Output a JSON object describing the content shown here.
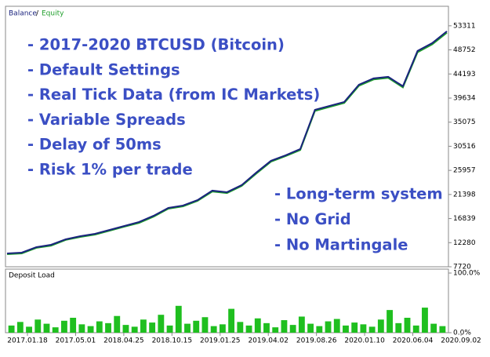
{
  "chart_data": [
    {
      "type": "line",
      "legend_separator": "/",
      "series": [
        {
          "name": "Balance",
          "color": "#1a237e",
          "values": [
            10244,
            10393,
            11433,
            11878,
            12918,
            13512,
            13957,
            14700,
            15442,
            16185,
            17373,
            18858,
            19303,
            20343,
            22125,
            21828,
            23164,
            25540,
            27768,
            28807,
            29995,
            37420,
            38163,
            38905,
            42172,
            43360,
            43657,
            41875,
            48558,
            50043,
            52270
          ]
        },
        {
          "name": "Equity",
          "color": "#1e9e2a",
          "values": [
            10100,
            10250,
            11300,
            11700,
            12800,
            13350,
            13800,
            14550,
            15300,
            16000,
            17200,
            18700,
            19150,
            20200,
            21950,
            21650,
            23000,
            25350,
            27600,
            28650,
            29800,
            37200,
            37950,
            38700,
            41950,
            43150,
            43450,
            41650,
            48300,
            49800,
            52000
          ]
        }
      ],
      "ylim": [
        7720,
        57000
      ],
      "yticks": [
        7720,
        12280,
        16839,
        21398,
        25957,
        30516,
        35075,
        39634,
        44193,
        48752,
        53311
      ],
      "annotations": [
        [
          "- 2017-2020 BTCUSD (Bitcoin)",
          "- Default Settings",
          "- Real Tick Data (from IC Markets)",
          "- Variable Spreads",
          "- Delay of 50ms",
          "- Risk 1% per trade"
        ],
        [
          "- Long-term system",
          "- No Grid",
          "- No Martingale"
        ]
      ]
    },
    {
      "type": "bar",
      "title": "Deposit Load",
      "color": "#1fbf1f",
      "values": [
        12,
        18,
        10,
        22,
        15,
        9,
        20,
        25,
        14,
        11,
        19,
        16,
        28,
        13,
        10,
        22,
        17,
        30,
        12,
        45,
        15,
        20,
        26,
        11,
        14,
        40,
        18,
        12,
        24,
        16,
        9,
        21,
        13,
        27,
        15,
        11,
        19,
        23,
        12,
        17,
        14,
        10,
        22,
        38,
        16,
        25,
        12,
        42,
        15,
        11
      ],
      "ylim": [
        0,
        100
      ],
      "yticks": [
        {
          "value": 0,
          "label": "0.0%"
        },
        {
          "value": 100,
          "label": "100.0%"
        }
      ],
      "x_labels": [
        "2017.01.18",
        "2017.05.01",
        "2018.04.25",
        "2018.10.15",
        "2019.01.25",
        "2019.04.02",
        "2019.08.26",
        "2020.01.10",
        "2020.06.04",
        "2020.09.02"
      ]
    }
  ]
}
